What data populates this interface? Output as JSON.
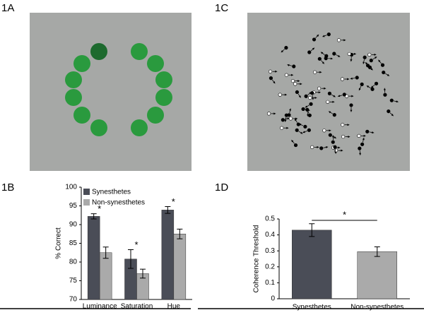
{
  "panels": [
    "1A",
    "1B",
    "1C",
    "1D"
  ],
  "chart_data": [
    {
      "type": "grouped-bar",
      "ylabel": "% Correct",
      "categories": [
        "Luminance",
        "Saturation",
        "Hue"
      ],
      "series": [
        {
          "name": "Synesthetes",
          "color": "#4a4d57",
          "values": [
            92.2,
            80.8,
            93.9
          ],
          "errors": [
            0.7,
            2.5,
            0.9
          ],
          "markers": [
            "*",
            "*",
            "*"
          ]
        },
        {
          "name": "Non-synesthetes",
          "color": "#aaaaaa",
          "values": [
            82.5,
            76.9,
            87.5
          ],
          "errors": [
            1.5,
            1.2,
            1.3
          ]
        }
      ],
      "ylim": [
        70,
        100
      ],
      "yticks": [
        70,
        75,
        80,
        85,
        90,
        95,
        100
      ]
    },
    {
      "type": "bar",
      "ylabel": "Coherence Threshold",
      "categories": [
        "Synesthetes",
        "Non-synesthetes"
      ],
      "values": [
        0.43,
        0.295
      ],
      "errors": [
        0.04,
        0.03
      ],
      "colors": [
        "#4a4d57",
        "#aaaaaa"
      ],
      "annotation": "*",
      "ylim": [
        0,
        0.5
      ],
      "yticks": [
        0,
        0.1,
        0.2,
        0.3,
        0.4,
        0.5
      ]
    }
  ]
}
